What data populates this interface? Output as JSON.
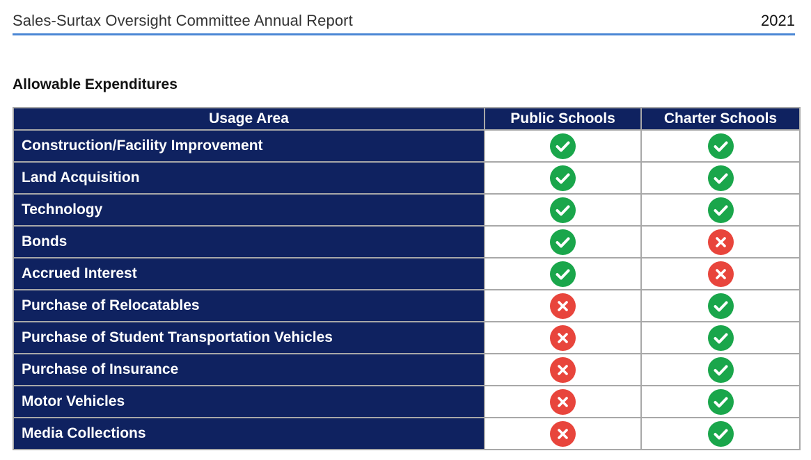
{
  "header": {
    "title": "Sales-Surtax Oversight Committee Annual Report",
    "year": "2021"
  },
  "section": {
    "title": "Allowable Expenditures"
  },
  "table": {
    "columns": [
      "Usage Area",
      "Public Schools",
      "Charter Schools"
    ],
    "rows": [
      {
        "label": "Construction/Facility Improvement",
        "public": "check",
        "charter": "check"
      },
      {
        "label": "Land Acquisition",
        "public": "check",
        "charter": "check"
      },
      {
        "label": "Technology",
        "public": "check",
        "charter": "check"
      },
      {
        "label": "Bonds",
        "public": "check",
        "charter": "x"
      },
      {
        "label": "Accrued Interest",
        "public": "check",
        "charter": "x"
      },
      {
        "label": "Purchase of Relocatables",
        "public": "x",
        "charter": "check"
      },
      {
        "label": "Purchase of Student Transportation Vehicles",
        "public": "x",
        "charter": "check"
      },
      {
        "label": "Purchase of Insurance",
        "public": "x",
        "charter": "check"
      },
      {
        "label": "Motor Vehicles",
        "public": "x",
        "charter": "check"
      },
      {
        "label": "Media Collections",
        "public": "x",
        "charter": "check"
      }
    ]
  },
  "icons": {
    "check": "check-circle-icon",
    "x": "x-circle-icon"
  },
  "colors": {
    "header_rule": "#4a86d4",
    "table_navy": "#0f2260",
    "check_green": "#1aa64b",
    "x_red": "#e8453c"
  }
}
